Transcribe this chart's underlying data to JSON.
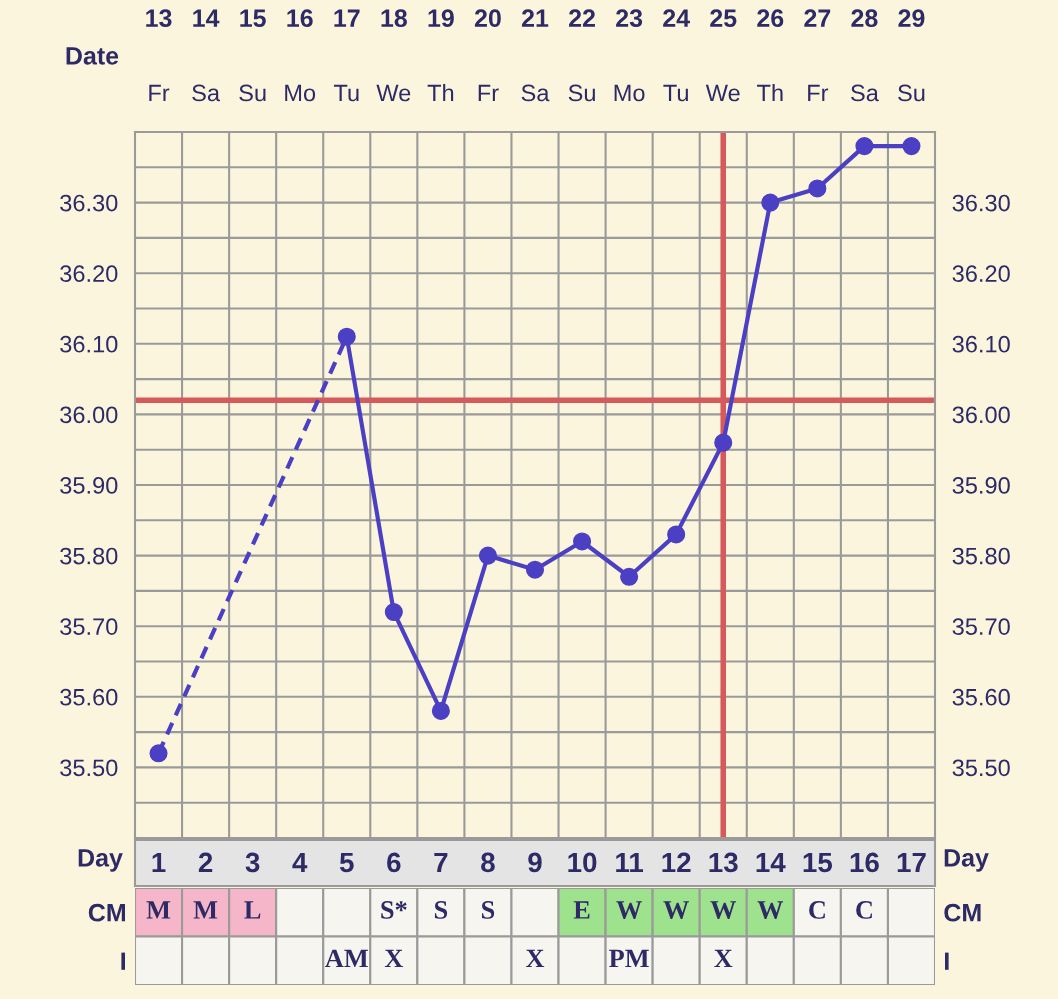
{
  "chart_data": [
    {
      "type": "line",
      "x2label": "Date",
      "xlabel": "Day",
      "annotations": [
        "Fr",
        "Sa",
        "Su",
        "Mo",
        "Tu",
        "We",
        "Th",
        "Fr",
        "Sa",
        "Su",
        "Mo",
        "Tu",
        "We",
        "Th",
        "Fr",
        "Sa",
        "Su"
      ],
      "series": [
        {
          "color": "#4b3fc4",
          "line_style": "dashed",
          "x": [
            1,
            5
          ],
          "values": [
            35.52,
            36.11
          ]
        },
        {
          "color": "#4b3fc4",
          "line_style": "solid",
          "marker": "circle",
          "x": [
            1,
            2,
            3,
            4,
            5,
            6,
            7,
            8,
            9,
            10,
            11,
            12,
            13,
            14,
            15,
            16,
            17
          ],
          "values": [
            35.52,
            null,
            null,
            null,
            36.11,
            35.72,
            35.58,
            35.8,
            35.78,
            35.82,
            35.77,
            35.83,
            35.96,
            36.3,
            36.32,
            36.38,
            36.38
          ]
        }
      ],
      "xlim": [
        0.5,
        17.5
      ],
      "xticks": [
        1,
        {
          "value": 1.5,
          "label": null
        },
        2,
        {
          "value": 2.5,
          "label": null
        },
        3,
        {
          "value": 3.5,
          "label": null
        },
        4,
        {
          "value": 4.5,
          "label": null
        },
        5,
        {
          "value": 5.5,
          "label": null
        },
        6,
        {
          "value": 6.5,
          "label": null
        },
        7,
        {
          "value": 7.5,
          "label": null
        },
        8,
        {
          "value": 8.5,
          "label": null
        },
        9,
        {
          "value": 9.5,
          "label": null
        },
        10,
        {
          "value": 10.5,
          "label": null
        },
        11,
        {
          "value": 11.5,
          "label": null
        },
        12,
        {
          "value": 12.5,
          "label": null
        },
        13,
        {
          "value": 13.5,
          "label": null
        },
        14,
        {
          "value": 14.5,
          "label": null
        },
        15,
        {
          "value": 15.5,
          "label": null
        },
        16,
        {
          "value": 16.5,
          "label": null
        },
        17
      ],
      "x2lim": [
        12.5,
        29.5
      ],
      "x2ticks": [
        13,
        14,
        15,
        16,
        17,
        18,
        19,
        20,
        21,
        22,
        23,
        24,
        25,
        26,
        27,
        28,
        29
      ],
      "ylim": [
        35.4,
        36.4
      ],
      "yticks": [
        {
          "value": 35.45,
          "label": null
        },
        {
          "value": 35.5,
          "label": "35.50"
        },
        {
          "value": 35.55,
          "label": null
        },
        {
          "value": 35.6,
          "label": "35.60"
        },
        {
          "value": 35.65,
          "label": null
        },
        {
          "value": 35.7,
          "label": "35.70"
        },
        {
          "value": 35.75,
          "label": null
        },
        {
          "value": 35.8,
          "label": "35.80"
        },
        {
          "value": 35.85,
          "label": null
        },
        {
          "value": 35.9,
          "label": "35.90"
        },
        {
          "value": 35.95,
          "label": null
        },
        {
          "value": 36.0,
          "label": "36.00"
        },
        {
          "value": 36.05,
          "label": null
        },
        {
          "value": 36.1,
          "label": "36.10"
        },
        {
          "value": 36.15,
          "label": null
        },
        {
          "value": 36.2,
          "label": "36.20"
        },
        {
          "value": 36.25,
          "label": null
        },
        {
          "value": 36.3,
          "label": "36.30"
        },
        {
          "value": 36.35,
          "label": null
        }
      ],
      "y2lim": [
        35.4,
        36.4
      ],
      "y2ticks": [
        {
          "value": 35.45,
          "label": null
        },
        {
          "value": 35.5,
          "label": "35.50"
        },
        {
          "value": 35.55,
          "label": null
        },
        {
          "value": 35.6,
          "label": "35.60"
        },
        {
          "value": 35.65,
          "label": null
        },
        {
          "value": 35.7,
          "label": "35.70"
        },
        {
          "value": 35.75,
          "label": null
        },
        {
          "value": 35.8,
          "label": "35.80"
        },
        {
          "value": 35.85,
          "label": null
        },
        {
          "value": 35.9,
          "label": "35.90"
        },
        {
          "value": 35.95,
          "label": null
        },
        {
          "value": 36.0,
          "label": "36.00"
        },
        {
          "value": 36.05,
          "label": null
        },
        {
          "value": 36.1,
          "label": "36.10"
        },
        {
          "value": 36.15,
          "label": null
        },
        {
          "value": 36.2,
          "label": "36.20"
        },
        {
          "value": 36.25,
          "label": null
        },
        {
          "value": 36.3,
          "label": "36.30"
        },
        {
          "value": 36.35,
          "label": null
        }
      ],
      "grid": true,
      "ref_lines": [
        {
          "axis": "y",
          "value": 36.02,
          "color": "#d65a5c"
        },
        {
          "axis": "x",
          "value": 13,
          "color": "#d65a5c"
        }
      ]
    },
    {
      "type": "heatmap",
      "categories": [
        null,
        null,
        null,
        null,
        null,
        null,
        null,
        null,
        null,
        null,
        null,
        null,
        null,
        null,
        null,
        null,
        null
      ],
      "y_categories": [
        "CM",
        "I"
      ],
      "y2_categories": [
        "CM",
        "I"
      ],
      "cells": [
        [
          null,
          null,
          null,
          null,
          null,
          null,
          null,
          null,
          null,
          null,
          null,
          null,
          null,
          null,
          null,
          null,
          null
        ],
        [
          null,
          null,
          null,
          null,
          null,
          null,
          null,
          null,
          null,
          null,
          null,
          null,
          null,
          null,
          null,
          null,
          null
        ]
      ],
      "cell_labels": [
        [
          "M",
          "M",
          "L",
          null,
          null,
          "S*",
          "S",
          "S",
          null,
          "E",
          "W",
          "W",
          "W",
          "W",
          "C",
          "C",
          null
        ],
        [
          null,
          null,
          null,
          null,
          "AM",
          "X",
          null,
          null,
          "X",
          null,
          "PM",
          null,
          "X",
          null,
          null,
          null,
          null
        ]
      ],
      "colors": [
        [
          "#f4b6c8",
          "#f4b6c8",
          "#f4b6c8",
          "#f6f5ef",
          "#f6f5ef",
          "#f6f5ef",
          "#f6f5ef",
          "#f6f5ef",
          "#f6f5ef",
          "#9fe28d",
          "#9fe28d",
          "#9fe28d",
          "#9fe28d",
          "#9fe28d",
          "#f6f5ef",
          "#f6f5ef",
          "#f6f5ef"
        ],
        [
          "#f6f5ef",
          "#f6f5ef",
          "#f6f5ef",
          "#f6f5ef",
          "#f6f5ef",
          "#f6f5ef",
          "#f6f5ef",
          "#f6f5ef",
          "#f6f5ef",
          "#f6f5ef",
          "#f6f5ef",
          "#f6f5ef",
          "#f6f5ef",
          "#f6f5ef",
          "#f6f5ef",
          "#f6f5ef",
          "#f6f5ef"
        ]
      ]
    }
  ]
}
